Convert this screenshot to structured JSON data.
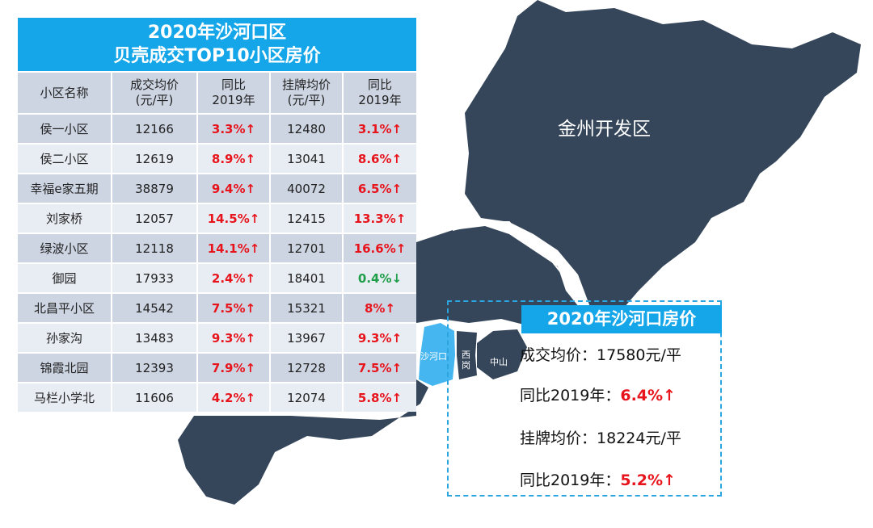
{
  "table": {
    "title_line1": "2020年沙河口区",
    "title_line2": "贝壳成交TOP10小区房价",
    "headers": [
      "小区名称",
      "成交均价\n(元/平)",
      "同比\n2019年",
      "挂牌均价\n(元/平)",
      "同比\n2019年"
    ],
    "header_parts": [
      [
        "小区名称"
      ],
      [
        "成交均价",
        "(元/平)"
      ],
      [
        "同比",
        "2019年"
      ],
      [
        "挂牌均价",
        "(元/平)"
      ],
      [
        "同比",
        "2019年"
      ]
    ],
    "rows": [
      {
        "name": "侯一小区",
        "deal_price": "12166",
        "deal_yoy": "3.3%↑",
        "list_price": "12480",
        "list_yoy": "3.1%↑",
        "list_trend": "up"
      },
      {
        "name": "侯二小区",
        "deal_price": "12619",
        "deal_yoy": "8.9%↑",
        "list_price": "13041",
        "list_yoy": "8.6%↑",
        "list_trend": "up"
      },
      {
        "name": "幸福e家五期",
        "deal_price": "38879",
        "deal_yoy": "9.4%↑",
        "list_price": "40072",
        "list_yoy": "6.5%↑",
        "list_trend": "up"
      },
      {
        "name": "刘家桥",
        "deal_price": "12057",
        "deal_yoy": "14.5%↑",
        "list_price": "12415",
        "list_yoy": "13.3%↑",
        "list_trend": "up"
      },
      {
        "name": "绿波小区",
        "deal_price": "12118",
        "deal_yoy": "14.1%↑",
        "list_price": "12701",
        "list_yoy": "16.6%↑",
        "list_trend": "up"
      },
      {
        "name": "御园",
        "deal_price": "17933",
        "deal_yoy": "2.4%↑",
        "list_price": "18401",
        "list_yoy": "0.4%↓",
        "list_trend": "down"
      },
      {
        "name": "北昌平小区",
        "deal_price": "14542",
        "deal_yoy": "7.5%↑",
        "list_price": "15321",
        "list_yoy": "8%↑",
        "list_trend": "up"
      },
      {
        "name": "孙家沟",
        "deal_price": "13483",
        "deal_yoy": "9.3%↑",
        "list_price": "13967",
        "list_yoy": "9.3%↑",
        "list_trend": "up"
      },
      {
        "name": "锦霞北园",
        "deal_price": "12393",
        "deal_yoy": "7.9%↑",
        "list_price": "12728",
        "list_yoy": "7.5%↑",
        "list_trend": "up"
      },
      {
        "name": "马栏小学北",
        "deal_price": "11606",
        "deal_yoy": "4.2%↑",
        "list_price": "12074",
        "list_yoy": "5.8%↑",
        "list_trend": "up"
      }
    ]
  },
  "map": {
    "labels": {
      "jinzhou": "金州开发区",
      "shahekou": "沙河口",
      "xigang": "西岗",
      "zhongshan": "中山"
    },
    "colors": {
      "region": "#35465a",
      "highlight": "#45b6f0"
    }
  },
  "summary": {
    "title": "2020年沙河口房价",
    "deal_label": "成交均价：",
    "deal_value": "17580元/平",
    "deal_yoy_label": "同比2019年：",
    "deal_yoy_value": "6.4%↑",
    "list_label": "挂牌均价：",
    "list_value": "18224元/平",
    "list_yoy_label": "同比2019年：",
    "list_yoy_value": "5.2%↑"
  },
  "colors": {
    "accent": "#14a6e8",
    "up": "#e8141c",
    "down": "#1e9e48",
    "row_dark": "#cdd5e3",
    "row_light": "#e8ecf3"
  }
}
